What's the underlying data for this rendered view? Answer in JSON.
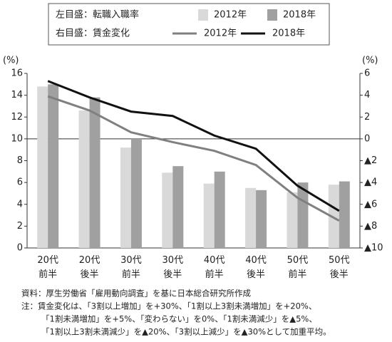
{
  "chart_data": {
    "type": "bar-line",
    "left_axis_label": "左目盛：転職入職率",
    "right_axis_label": "右目盛：賃金変化",
    "ylabel": "(%)",
    "y2label": "(%)",
    "categories": [
      "20代\n前半",
      "20代\n後半",
      "30代\n前半",
      "30代\n後半",
      "40代\n前半",
      "40代\n後半",
      "50代\n前半",
      "50代\n後半"
    ],
    "series": [
      {
        "name": "2012年",
        "type": "bar",
        "color": "#d9d9d9",
        "values": [
          14.8,
          12.6,
          9.2,
          6.9,
          5.9,
          5.5,
          5.1,
          5.8
        ]
      },
      {
        "name": "2018年",
        "type": "bar",
        "color": "#a0a0a0",
        "values": [
          15.0,
          13.8,
          10.0,
          7.5,
          7.0,
          5.3,
          6.0,
          6.1
        ]
      },
      {
        "name": "2012年",
        "type": "line",
        "axis": "y2",
        "color": "#808080",
        "values": [
          3.9,
          2.6,
          0.6,
          -0.3,
          -1.1,
          -2.4,
          -5.4,
          -7.5
        ]
      },
      {
        "name": "2018年",
        "type": "line",
        "axis": "y2",
        "color": "#111111",
        "values": [
          5.3,
          3.8,
          2.5,
          2.1,
          0.3,
          -0.9,
          -4.3,
          -6.6
        ]
      }
    ],
    "ylim": [
      0,
      16
    ],
    "yticks": [
      0,
      2,
      4,
      6,
      8,
      10,
      12,
      14,
      16
    ],
    "y2lim": [
      -10,
      6
    ],
    "y2ticks": [
      {
        "value": -10,
        "label": "▲10"
      },
      {
        "value": -8,
        "label": "▲8"
      },
      {
        "value": -6,
        "label": "▲6"
      },
      {
        "value": -4,
        "label": "▲4"
      },
      {
        "value": -2,
        "label": "▲2"
      },
      0,
      2,
      4,
      6
    ],
    "notes": [
      "資料：厚生労働省「雇用動向調査」を基に日本総合研究所作成",
      "注：賃金変化は、「3割以上増加」を+30%、「1割以上3割未満増加」を+20%、",
      "「1割未満増加」を+5%、「変わらない」を0%、「1割未満減少」を▲5%、",
      "「1割以上3割未満減少」を▲20%、「3割以上減少」を▲30%として加重平均。"
    ]
  }
}
